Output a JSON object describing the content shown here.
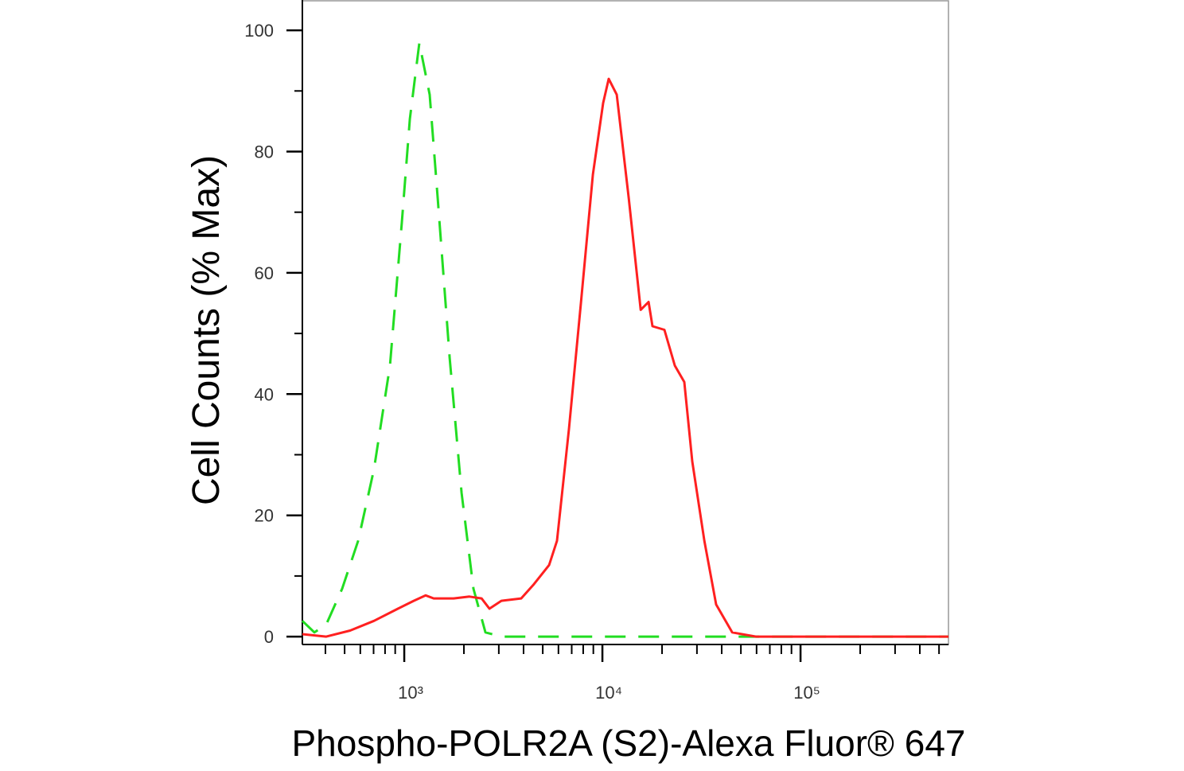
{
  "chart_data": {
    "type": "line",
    "xlabel": "Phospho-POLR2A (S2)-Alexa Fluor® 647",
    "ylabel": "Cell Counts (% Max)",
    "xscale": "log",
    "xlim": [
      306,
      558000
    ],
    "ylim": [
      -1.3,
      105
    ],
    "xticks": [
      {
        "value": 1000,
        "label": "10³"
      },
      {
        "value": 10000,
        "label": "10⁴"
      },
      {
        "value": 100000,
        "label": "10⁵"
      }
    ],
    "xminorticks": [
      400,
      500,
      600,
      700,
      800,
      900,
      2000,
      3000,
      4000,
      5000,
      6000,
      7000,
      8000,
      9000,
      20000,
      30000,
      40000,
      50000,
      60000,
      70000,
      80000,
      90000,
      200000,
      300000,
      400000,
      500000
    ],
    "yticks": [
      0,
      20,
      40,
      60,
      80,
      100
    ],
    "yminorticks": [
      10,
      30,
      50,
      70,
      90
    ],
    "series": [
      {
        "color": "#22dd22",
        "dashed": true,
        "x": [
          306,
          352,
          404,
          486,
          585,
          703,
          847,
          972,
          1067,
          1191,
          1344,
          1475,
          1694,
          1946,
          2234,
          2570,
          3090,
          5900,
          558000
        ],
        "values": [
          2.6,
          0.7,
          2,
          7.9,
          15.8,
          27.6,
          44.7,
          68.3,
          85.4,
          97.9,
          89.4,
          72.3,
          46,
          23.7,
          7.9,
          0.7,
          0,
          0,
          0
        ]
      },
      {
        "color": "#ff2020",
        "dashed": false,
        "x": [
          306,
          404,
          533,
          703,
          929,
          1117,
          1283,
          1408,
          1774,
          2133,
          2455,
          2690,
          3090,
          3890,
          4475,
          5385,
          5900,
          6780,
          7800,
          8950,
          10090,
          10760,
          11810,
          13580,
          15600,
          17100,
          17900,
          20560,
          23200,
          25900,
          28400,
          32700,
          37500,
          45200,
          59600,
          558000
        ],
        "values": [
          0.4,
          0,
          1,
          2.6,
          4.6,
          5.9,
          6.8,
          6.3,
          6.3,
          6.6,
          6.3,
          4.6,
          5.9,
          6.3,
          8.5,
          11.8,
          15.8,
          34.2,
          55.2,
          76.2,
          88,
          92,
          89.4,
          72.3,
          53.9,
          55.2,
          51.2,
          50.6,
          44.7,
          42,
          28.9,
          15.8,
          5.3,
          0.7,
          0,
          0
        ]
      }
    ]
  }
}
